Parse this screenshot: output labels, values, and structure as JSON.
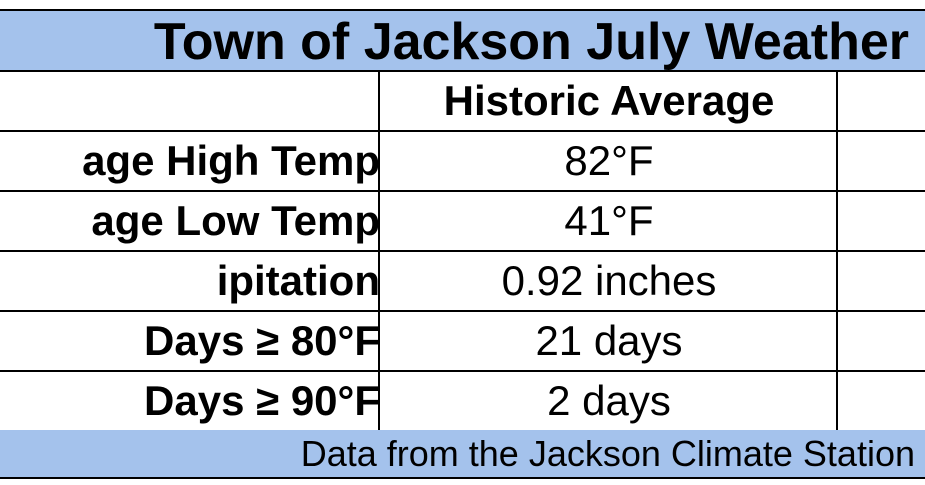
{
  "table": {
    "title": "Town of Jackson July Weather",
    "header": {
      "label": "",
      "value": "Historic Average"
    },
    "rows": [
      {
        "label": "age High Temp",
        "value": "82°F"
      },
      {
        "label": "age Low Temp",
        "value": "41°F"
      },
      {
        "label": "ipitation",
        "value": "0.92 inches"
      },
      {
        "label": "Days ≥ 80°F",
        "value": "21 days"
      },
      {
        "label": "Days ≥ 90°F",
        "value": "2 days"
      }
    ],
    "footer": "Data from the Jackson Climate Station"
  },
  "colors": {
    "header_fill": "#a4c2ec",
    "border": "#000000",
    "background": "#ffffff"
  }
}
